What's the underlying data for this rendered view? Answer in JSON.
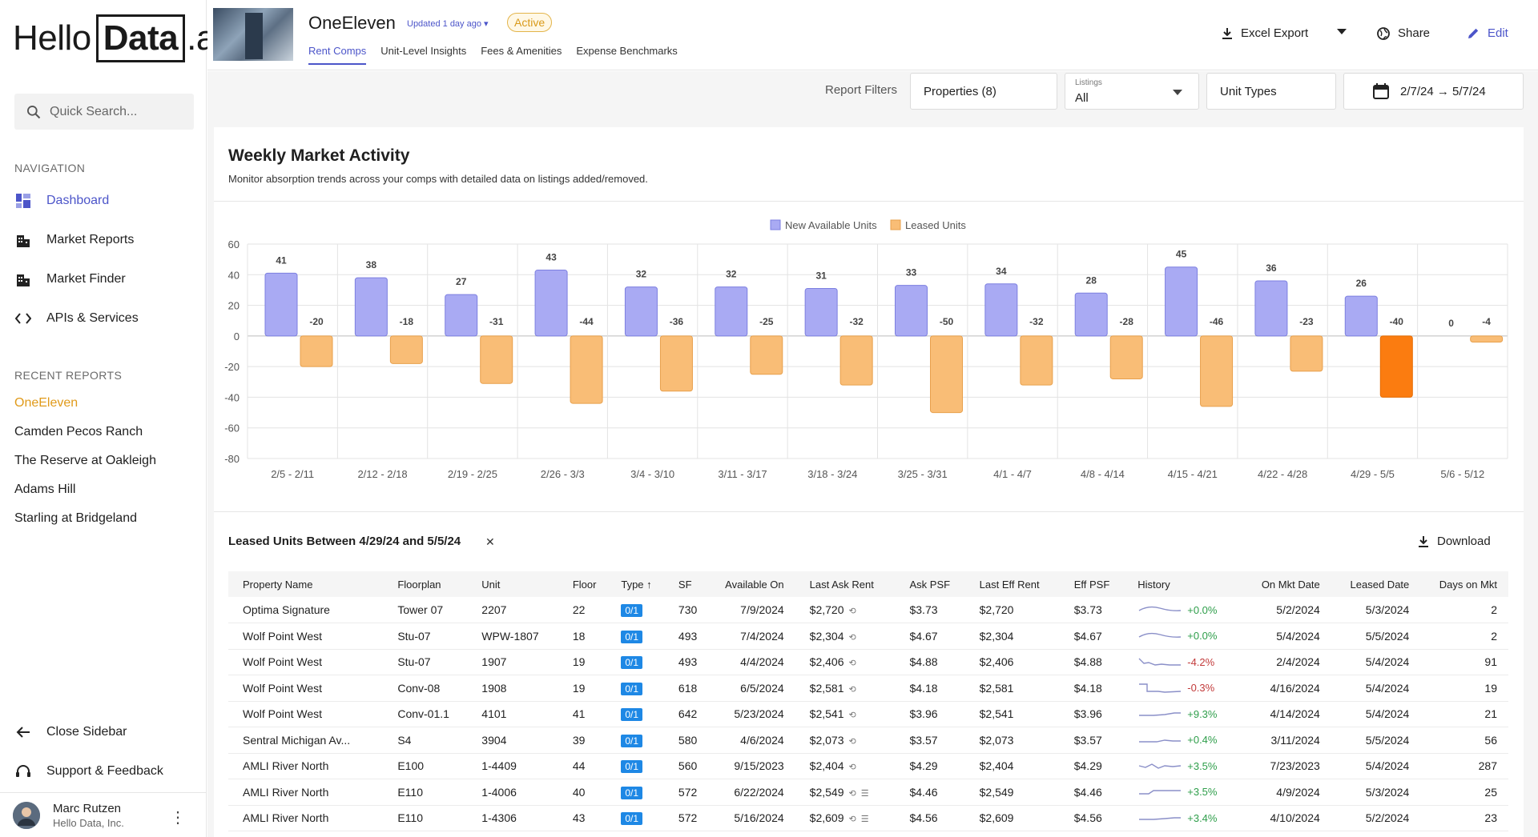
{
  "sidebar": {
    "logo": {
      "part1": "Hello",
      "part2": "Data",
      "part3": ".ai"
    },
    "search_placeholder": "Quick Search...",
    "nav_label": "NAVIGATION",
    "nav": [
      {
        "label": "Dashboard",
        "icon": "dashboard-icon"
      },
      {
        "label": "Market Reports",
        "icon": "buildings-icon"
      },
      {
        "label": "Market Finder",
        "icon": "buildings-icon"
      },
      {
        "label": "APIs & Services",
        "icon": "code-icon"
      }
    ],
    "recent_label": "RECENT REPORTS",
    "recent": [
      "OneEleven",
      "Camden Pecos Ranch",
      "The Reserve at Oakleigh",
      "Adams Hill",
      "Starling at Bridgeland"
    ],
    "close_sidebar": "Close Sidebar",
    "support": "Support & Feedback",
    "user": {
      "name": "Marc Rutzen",
      "org": "Hello Data, Inc."
    }
  },
  "header": {
    "title": "OneEleven",
    "updated": "Updated 1 day ago",
    "status": "Active",
    "tabs": [
      "Rent Comps",
      "Unit-Level Insights",
      "Fees & Amenities",
      "Expense Benchmarks"
    ],
    "excel_export": "Excel Export",
    "share": "Share",
    "edit": "Edit"
  },
  "filters": {
    "label": "Report Filters",
    "properties": "Properties (8)",
    "listings_label": "Listings",
    "listings_value": "All",
    "unit_types": "Unit Types",
    "date_range": "2/7/24 → 5/7/24"
  },
  "card": {
    "title": "Weekly Market Activity",
    "subtitle": "Monitor absorption trends across your comps with detailed data on listings added/removed."
  },
  "chart_data": {
    "type": "bar",
    "categories": [
      "2/5 - 2/11",
      "2/12 - 2/18",
      "2/19 - 2/25",
      "2/26 - 3/3",
      "3/4 - 3/10",
      "3/11 - 3/17",
      "3/18 - 3/24",
      "3/25 - 3/31",
      "4/1 - 4/7",
      "4/8 - 4/14",
      "4/15 - 4/21",
      "4/22 - 4/28",
      "4/29 - 5/5",
      "5/6 - 5/12"
    ],
    "series": [
      {
        "name": "New Available Units",
        "color": "#a9aaf3",
        "values": [
          41,
          38,
          27,
          43,
          32,
          32,
          31,
          33,
          34,
          28,
          45,
          36,
          26,
          0
        ]
      },
      {
        "name": "Leased Units",
        "color": "#f9bd76",
        "values": [
          -20,
          -18,
          -31,
          -44,
          -36,
          -25,
          -32,
          -50,
          -32,
          -28,
          -46,
          -23,
          -40,
          -4
        ]
      }
    ],
    "highlight": {
      "series": 1,
      "index": 12,
      "color": "#fb7c10"
    },
    "ylim": [
      -80,
      60
    ],
    "yticks": [
      60,
      40,
      20,
      0,
      -20,
      -40,
      -60,
      -80
    ],
    "legend": "top-center",
    "grid": true
  },
  "table": {
    "title": "Leased Units Between 4/29/24 and 5/5/24",
    "download": "Download",
    "columns": [
      "Property Name",
      "Floorplan",
      "Unit",
      "Floor",
      "Type",
      "SF",
      "Available On",
      "Last Ask Rent",
      "Ask PSF",
      "Last Eff Rent",
      "Eff PSF",
      "History",
      "On Mkt Date",
      "Leased Date",
      "Days on Mkt"
    ],
    "rows": [
      {
        "property": "Optima Signature",
        "floorplan": "Tower 07",
        "unit": "2207",
        "floor": "22",
        "type": "0/1",
        "sf": "730",
        "available": "7/9/2024",
        "ask_rent": "$2,720",
        "ask_psf": "$3.73",
        "eff_rent": "$2,720",
        "eff_psf": "$3.73",
        "history": "+0.0%",
        "on_mkt": "5/2/2024",
        "leased": "5/3/2024",
        "days": "2"
      },
      {
        "property": "Wolf Point West",
        "floorplan": "Stu-07",
        "unit": "WPW-1807",
        "floor": "18",
        "type": "0/1",
        "sf": "493",
        "available": "7/4/2024",
        "ask_rent": "$2,304",
        "ask_psf": "$4.67",
        "eff_rent": "$2,304",
        "eff_psf": "$4.67",
        "history": "+0.0%",
        "on_mkt": "5/4/2024",
        "leased": "5/5/2024",
        "days": "2"
      },
      {
        "property": "Wolf Point West",
        "floorplan": "Stu-07",
        "unit": "1907",
        "floor": "19",
        "type": "0/1",
        "sf": "493",
        "available": "4/4/2024",
        "ask_rent": "$2,406",
        "ask_psf": "$4.88",
        "eff_rent": "$2,406",
        "eff_psf": "$4.88",
        "history": "-4.2%",
        "on_mkt": "2/4/2024",
        "leased": "5/4/2024",
        "days": "91"
      },
      {
        "property": "Wolf Point West",
        "floorplan": "Conv-08",
        "unit": "1908",
        "floor": "19",
        "type": "0/1",
        "sf": "618",
        "available": "6/5/2024",
        "ask_rent": "$2,581",
        "ask_psf": "$4.18",
        "eff_rent": "$2,581",
        "eff_psf": "$4.18",
        "history": "-0.3%",
        "on_mkt": "4/16/2024",
        "leased": "5/4/2024",
        "days": "19"
      },
      {
        "property": "Wolf Point West",
        "floorplan": "Conv-01.1",
        "unit": "4101",
        "floor": "41",
        "type": "0/1",
        "sf": "642",
        "available": "5/23/2024",
        "ask_rent": "$2,541",
        "ask_psf": "$3.96",
        "eff_rent": "$2,541",
        "eff_psf": "$3.96",
        "history": "+9.3%",
        "on_mkt": "4/14/2024",
        "leased": "5/4/2024",
        "days": "21"
      },
      {
        "property": "Sentral Michigan Av...",
        "floorplan": "S4",
        "unit": "3904",
        "floor": "39",
        "type": "0/1",
        "sf": "580",
        "available": "4/6/2024",
        "ask_rent": "$2,073",
        "ask_psf": "$3.57",
        "eff_rent": "$2,073",
        "eff_psf": "$3.57",
        "history": "+0.4%",
        "on_mkt": "3/11/2024",
        "leased": "5/5/2024",
        "days": "56"
      },
      {
        "property": "AMLI River North",
        "floorplan": "E100",
        "unit": "1-4409",
        "floor": "44",
        "type": "0/1",
        "sf": "560",
        "available": "9/15/2023",
        "ask_rent": "$2,404",
        "ask_psf": "$4.29",
        "eff_rent": "$2,404",
        "eff_psf": "$4.29",
        "history": "+3.5%",
        "on_mkt": "7/23/2023",
        "leased": "5/4/2024",
        "days": "287"
      },
      {
        "property": "AMLI River North",
        "floorplan": "E110",
        "unit": "1-4006",
        "floor": "40",
        "type": "0/1",
        "sf": "572",
        "available": "6/22/2024",
        "ask_rent": "$2,549",
        "ask_psf": "$4.46",
        "eff_rent": "$2,549",
        "eff_psf": "$4.46",
        "history": "+3.5%",
        "on_mkt": "4/9/2024",
        "leased": "5/3/2024",
        "days": "25"
      },
      {
        "property": "AMLI River North",
        "floorplan": "E110",
        "unit": "1-4306",
        "floor": "43",
        "type": "0/1",
        "sf": "572",
        "available": "5/16/2024",
        "ask_rent": "$2,609",
        "ask_psf": "$4.56",
        "eff_rent": "$2,609",
        "eff_psf": "$4.56",
        "history": "+3.4%",
        "on_mkt": "4/10/2024",
        "leased": "5/2/2024",
        "days": "23"
      }
    ]
  }
}
